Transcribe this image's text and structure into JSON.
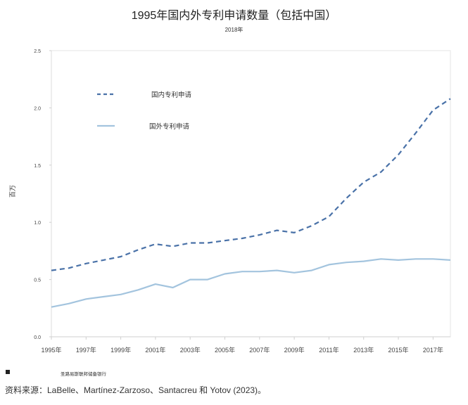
{
  "chart_data": {
    "type": "line",
    "title": "1995年国内外专利申请数量（包括中国）",
    "subtitle": "2018年",
    "ylabel": "百万",
    "xlabel": "",
    "ylim": [
      0,
      2.5
    ],
    "yticks": [
      "0.0",
      "0.5",
      "1.0",
      "1.5",
      "2.0",
      "2.5"
    ],
    "x": [
      1995,
      1996,
      1997,
      1998,
      1999,
      2000,
      2001,
      2002,
      2003,
      2004,
      2005,
      2006,
      2007,
      2008,
      2009,
      2010,
      2011,
      2012,
      2013,
      2014,
      2015,
      2016,
      2017,
      2018
    ],
    "xticks": [
      "1995年",
      "1997年",
      "1999年",
      "2001年",
      "2003年",
      "2005年",
      "2007年",
      "2009年",
      "2011年",
      "2013年",
      "2015年",
      "2017年"
    ],
    "legend": "top-left, inside plot",
    "grid": false,
    "series": [
      {
        "name": "国内专利申请",
        "style": "dashed",
        "color": "#4a72a8",
        "values": [
          0.58,
          0.6,
          0.64,
          0.67,
          0.7,
          0.76,
          0.81,
          0.79,
          0.82,
          0.82,
          0.84,
          0.86,
          0.89,
          0.93,
          0.91,
          0.97,
          1.05,
          1.21,
          1.35,
          1.44,
          1.59,
          1.78,
          1.98,
          2.08
        ]
      },
      {
        "name": "国外专利申请",
        "style": "solid",
        "color": "#a3c4de",
        "values": [
          0.26,
          0.29,
          0.33,
          0.35,
          0.37,
          0.41,
          0.46,
          0.43,
          0.5,
          0.5,
          0.55,
          0.57,
          0.57,
          0.58,
          0.56,
          0.58,
          0.63,
          0.65,
          0.66,
          0.68,
          0.67,
          0.68,
          0.68,
          0.67
        ]
      }
    ]
  },
  "footnote": "圣路易斯联邦储备银行",
  "source": "资料来源：LaBelle、Martínez-Zarzoso、Santacreu 和 Yotov (2023)。"
}
